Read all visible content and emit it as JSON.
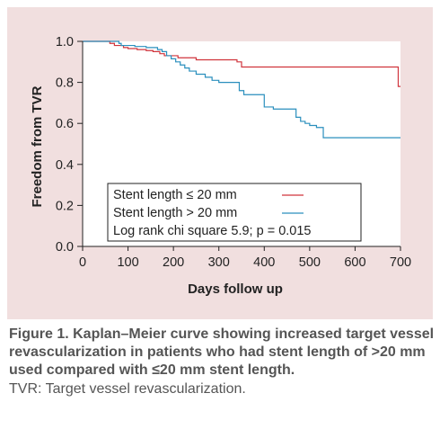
{
  "chart_data": {
    "type": "line",
    "title": "",
    "xlabel": "Days follow up",
    "ylabel": "Freedom from TVR",
    "xlim": [
      0,
      700
    ],
    "ylim": [
      0.0,
      1.0
    ],
    "x_ticks": [
      "0",
      "100",
      "200",
      "300",
      "400",
      "500",
      "600",
      "700"
    ],
    "y_ticks": [
      "0.0",
      "0.2",
      "0.4",
      "0.6",
      "0.8",
      "1.0"
    ],
    "grid": false,
    "step": true,
    "legend_position": "bottom-center",
    "series": [
      {
        "name": "Stent length ≤ 20 mm",
        "color": "#d0343c",
        "x": [
          0,
          60,
          70,
          90,
          100,
          120,
          140,
          155,
          170,
          180,
          210,
          250,
          340,
          350,
          690,
          695,
          700
        ],
        "y": [
          1.0,
          0.99,
          0.98,
          0.97,
          0.965,
          0.96,
          0.955,
          0.95,
          0.94,
          0.93,
          0.92,
          0.91,
          0.9,
          0.875,
          0.875,
          0.78,
          0.78
        ]
      },
      {
        "name": "Stent length > 20 mm",
        "color": "#2a8fbd",
        "x": [
          0,
          80,
          85,
          115,
          140,
          165,
          175,
          185,
          195,
          205,
          215,
          225,
          235,
          250,
          270,
          285,
          300,
          345,
          355,
          400,
          420,
          470,
          480,
          490,
          500,
          515,
          530,
          700
        ],
        "y": [
          1.0,
          0.99,
          0.98,
          0.975,
          0.97,
          0.96,
          0.95,
          0.93,
          0.915,
          0.9,
          0.885,
          0.87,
          0.855,
          0.84,
          0.825,
          0.81,
          0.8,
          0.76,
          0.74,
          0.68,
          0.67,
          0.63,
          0.61,
          0.6,
          0.59,
          0.58,
          0.53,
          0.53
        ]
      }
    ],
    "annotations": [
      "Log rank chi square 5.9; p = 0.015"
    ]
  },
  "caption": {
    "bold": "Figure 1. Kaplan–Meier curve showing increased target vessel revascularization in patients who had stent length of >20 mm used compared with ≤20 mm stent length.",
    "note": "TVR: Target vessel revascularization."
  },
  "colors": {
    "figure_background": "#f1dfdf",
    "plot_background": "#ffffff",
    "axis": "#222222",
    "caption_text": "#555555"
  }
}
